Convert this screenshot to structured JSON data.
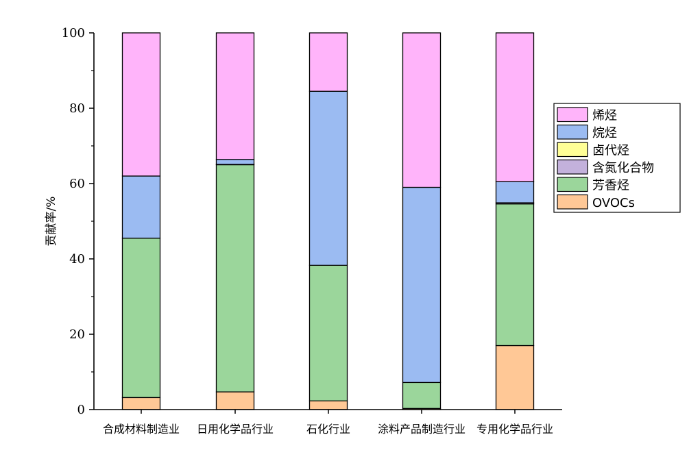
{
  "chart_data": {
    "type": "bar",
    "stacked": true,
    "ylabel": "贡献率/%",
    "xlabel": "",
    "ylim": [
      0,
      100
    ],
    "yticks": [
      0,
      20,
      40,
      60,
      80,
      100
    ],
    "grid": false,
    "legend_position": "right",
    "categories": [
      "合成材料制造业",
      "日用化学品行业",
      "石化行业",
      "涂料产品制造行业",
      "专用化学品行业"
    ],
    "series": [
      {
        "name": "OVOCs",
        "color": "#FFC896",
        "values": [
          3.2,
          4.7,
          2.3,
          0.3,
          17.0
        ]
      },
      {
        "name": "芳香烃",
        "color": "#9BD69B",
        "values": [
          42.3,
          60.3,
          36.0,
          6.9,
          37.6
        ]
      },
      {
        "name": "含氮化合物",
        "color": "#C3B1DB",
        "values": [
          0.0,
          0.0,
          0.0,
          0.0,
          0.3
        ]
      },
      {
        "name": "卤代烃",
        "color": "#FFFF96",
        "values": [
          0.0,
          0.1,
          0.0,
          0.0,
          0.0
        ]
      },
      {
        "name": "烷烃",
        "color": "#9BBBF2",
        "values": [
          16.5,
          1.3,
          46.2,
          51.8,
          5.6
        ]
      },
      {
        "name": "烯烃",
        "color": "#FFB4FA",
        "values": [
          38.0,
          33.6,
          15.5,
          41.0,
          39.5
        ]
      }
    ],
    "legend_order": [
      "烯烃",
      "烷烃",
      "卤代烃",
      "含氮化合物",
      "芳香烃",
      "OVOCs"
    ]
  }
}
